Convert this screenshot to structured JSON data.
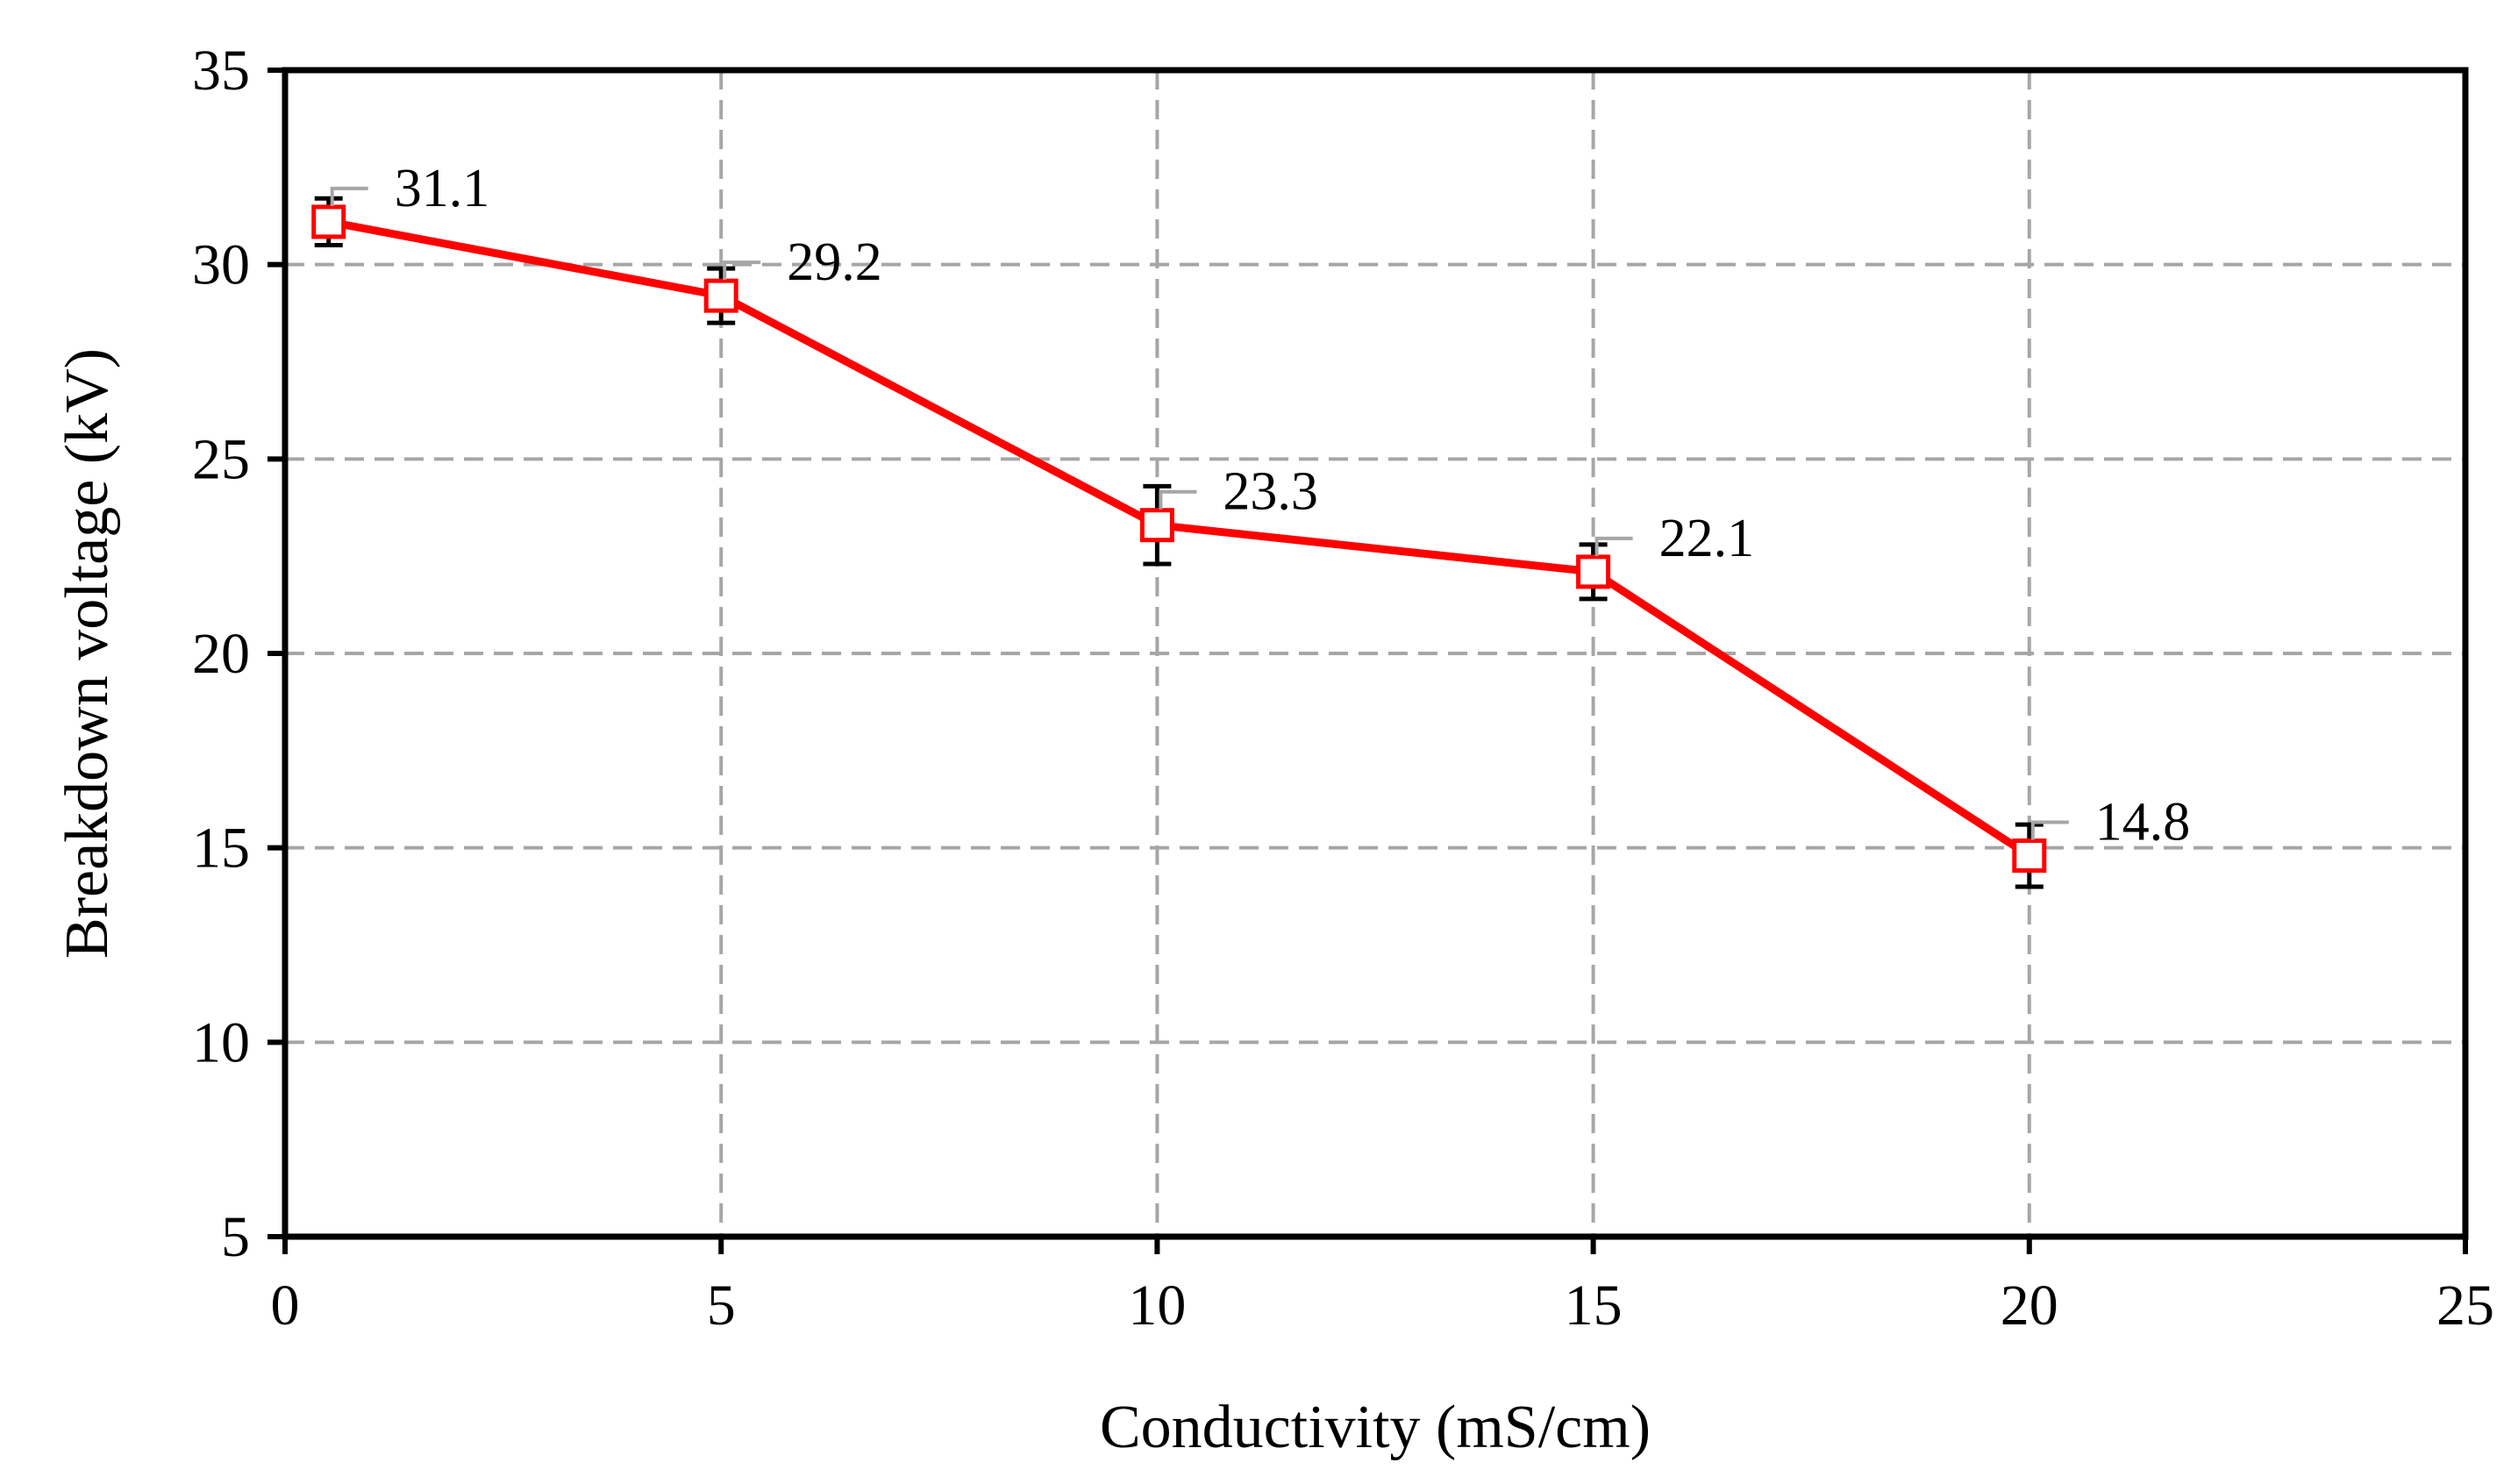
{
  "chart_data": {
    "type": "line",
    "title": "",
    "xlabel": "Conductivity (mS/cm)",
    "ylabel": "Breakdown voltage (kV)",
    "xlim": [
      0,
      25
    ],
    "ylim": [
      5,
      35
    ],
    "xticks": [
      0,
      5,
      10,
      15,
      20,
      25
    ],
    "yticks": [
      5,
      10,
      15,
      20,
      25,
      30,
      35
    ],
    "grid": true,
    "series": [
      {
        "color": "#ff0000",
        "marker": "open-square",
        "points": [
          {
            "x": 0.5,
            "y": 31.1,
            "err": 0.6,
            "label": "31.1"
          },
          {
            "x": 5,
            "y": 29.2,
            "err": 0.7,
            "label": "29.2"
          },
          {
            "x": 10,
            "y": 23.3,
            "err": 1.0,
            "label": "23.3"
          },
          {
            "x": 15,
            "y": 22.1,
            "err": 0.7,
            "label": "22.1"
          },
          {
            "x": 20,
            "y": 14.8,
            "err": 0.8,
            "label": "14.8"
          }
        ]
      }
    ]
  }
}
